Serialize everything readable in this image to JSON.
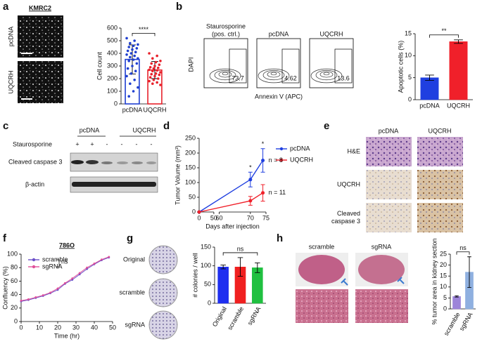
{
  "figure": {
    "panel_letters": [
      "a",
      "b",
      "c",
      "d",
      "e",
      "f",
      "g",
      "h"
    ],
    "a": {
      "title": "KMRC2",
      "image_labels": [
        "pcDNA",
        "UQCRH"
      ]
    },
    "b": {
      "plot_titles": [
        [
          "Staurosporine",
          "(pos. ctrl.)"
        ],
        [
          "pcDNA"
        ],
        [
          "UQCRH"
        ]
      ],
      "gate_values": [
        73.7,
        4.62,
        13.6
      ],
      "ylabel": "DAPI",
      "xlabel": "Annexin V (APC)"
    },
    "c": {
      "groups": [
        "pcDNA",
        "UQCRH"
      ],
      "row_label": "Staurosporine",
      "signs": [
        "+",
        "+",
        "-",
        "-",
        "-",
        "-"
      ],
      "bands": [
        "Cleaved caspase 3",
        "β-actin"
      ]
    },
    "e": {
      "columns": [
        "pcDNA",
        "UQCRH"
      ],
      "rows": [
        [
          "H&E"
        ],
        [
          "UQCRH"
        ],
        [
          "Cleaved",
          "caspase 3"
        ]
      ]
    },
    "g": {
      "rows": [
        "Original",
        "scramble",
        "sgRNA"
      ]
    },
    "h": {
      "columns": [
        "scramble",
        "sgRNA"
      ]
    }
  },
  "chart_data": [
    {
      "type": "bar",
      "ylabel": "Cell count",
      "categories": [
        "pcDNA",
        "UQCRH"
      ],
      "values": [
        352,
        268
      ],
      "errors": [
        115,
        68
      ],
      "colors": [
        "#1f3fd0",
        "#e8212b"
      ],
      "points": [
        [
          520,
          500,
          480,
          470,
          460,
          450,
          440,
          430,
          420,
          410,
          400,
          390,
          380,
          370,
          360,
          350,
          340,
          320,
          300,
          280,
          260,
          240,
          220,
          190,
          160,
          130,
          100,
          60
        ],
        [
          400,
          380,
          360,
          340,
          330,
          320,
          310,
          300,
          290,
          285,
          280,
          270,
          265,
          260,
          250,
          240,
          235,
          230,
          220,
          210,
          200,
          190,
          180,
          170,
          160,
          150
        ]
      ],
      "significance": "****",
      "ylim": [
        0,
        600
      ],
      "yticks": [
        0,
        100,
        200,
        300,
        400,
        500,
        600
      ]
    },
    {
      "type": "bar",
      "ylabel": "Apoptotic cells (%)",
      "categories": [
        "pcDNA",
        "UQCRH"
      ],
      "values": [
        5.0,
        13.2
      ],
      "errors": [
        0.6,
        0.4
      ],
      "colors": [
        "#1f3fe0",
        "#f0202a"
      ],
      "significance": "**",
      "ylim": [
        0,
        15
      ],
      "yticks": [
        0,
        5,
        10,
        15
      ]
    },
    {
      "type": "line",
      "ylabel": "Tumor Volume (mm³)",
      "xlabel": "Days after injection",
      "xlim": [
        0,
        75
      ],
      "xbreak": [
        50,
        60
      ],
      "xticks": [
        0,
        50,
        60,
        70,
        75
      ],
      "ylim": [
        0,
        250
      ],
      "yticks": [
        0,
        50,
        100,
        150,
        200,
        250
      ],
      "series": [
        {
          "name": "pcDNA",
          "color": "#1f3fe0",
          "x": [
            0,
            70,
            74
          ],
          "values": [
            0,
            110,
            175
          ],
          "errors": [
            null,
            25,
            40
          ]
        },
        {
          "name": "UQCRH",
          "color": "#f0202a",
          "x": [
            0,
            70,
            74
          ],
          "values": [
            0,
            38,
            65
          ],
          "errors": [
            null,
            15,
            28
          ]
        }
      ],
      "annotations": [
        "*",
        "*",
        "n = 8",
        "n = 11"
      ]
    },
    {
      "type": "line",
      "title": "786O",
      "ylabel": "Confluency (%)",
      "xlabel": "Time (hr)",
      "xlim": [
        0,
        50
      ],
      "xticks": [
        0,
        10,
        20,
        30,
        40,
        50
      ],
      "ylim": [
        0,
        100
      ],
      "yticks": [
        0,
        20,
        40,
        60,
        80,
        100
      ],
      "series": [
        {
          "name": "scramble",
          "color": "#6b4fc8",
          "x": [
            0,
            4,
            8,
            12,
            16,
            20,
            24,
            28,
            32,
            36,
            40,
            44,
            48
          ],
          "values": [
            30,
            32,
            35,
            38,
            42,
            47,
            56,
            62,
            70,
            78,
            85,
            91,
            95
          ]
        },
        {
          "name": "sgRNA",
          "color": "#e0509a",
          "x": [
            0,
            4,
            8,
            12,
            16,
            20,
            24,
            28,
            32,
            36,
            40,
            44,
            48
          ],
          "values": [
            31,
            33,
            36,
            39,
            43,
            49,
            57,
            64,
            72,
            80,
            86,
            92,
            96
          ]
        }
      ],
      "significance": "ns"
    },
    {
      "type": "bar",
      "ylabel": "# colonies / well",
      "categories": [
        "Original",
        "scramble",
        "sgRNA"
      ],
      "values": [
        97,
        97,
        95
      ],
      "errors": [
        5,
        25,
        13
      ],
      "colors": [
        "#1f2ff0",
        "#f02020",
        "#20c040"
      ],
      "significance": "ns",
      "ylim": [
        0,
        150
      ],
      "yticks": [
        0,
        50,
        100,
        150
      ]
    },
    {
      "type": "bar",
      "ylabel": "% tumor area in kidney section",
      "categories": [
        "scramble",
        "sgRNA"
      ],
      "values": [
        5.7,
        16.8
      ],
      "errors": [
        0.3,
        7.0
      ],
      "colors": [
        "#9d85d9",
        "#8fb0e0"
      ],
      "significance": "ns",
      "ylim": [
        0,
        25
      ],
      "yticks": [
        0,
        5,
        10,
        15,
        20,
        25
      ]
    }
  ]
}
